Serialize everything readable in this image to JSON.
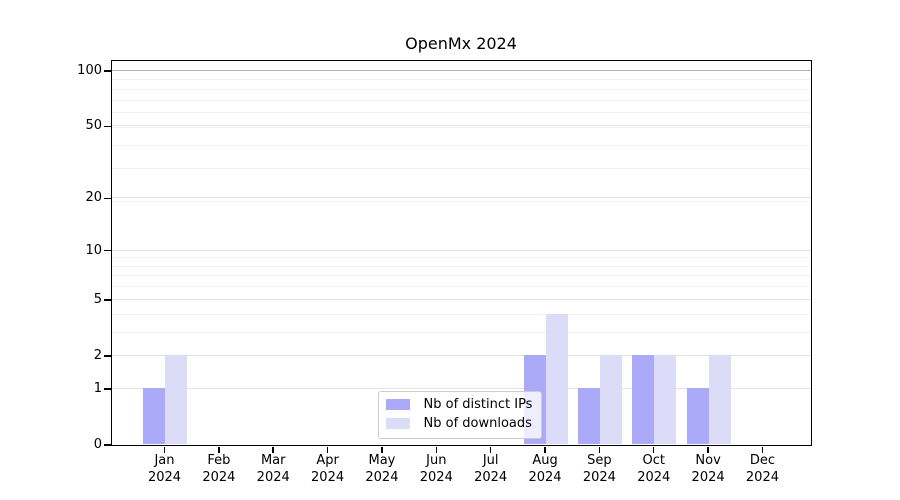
{
  "chart_data": {
    "type": "bar",
    "title": "OpenMx 2024",
    "categories": [
      {
        "month": "Jan",
        "year": "2024"
      },
      {
        "month": "Feb",
        "year": "2024"
      },
      {
        "month": "Mar",
        "year": "2024"
      },
      {
        "month": "Apr",
        "year": "2024"
      },
      {
        "month": "May",
        "year": "2024"
      },
      {
        "month": "Jun",
        "year": "2024"
      },
      {
        "month": "Jul",
        "year": "2024"
      },
      {
        "month": "Aug",
        "year": "2024"
      },
      {
        "month": "Sep",
        "year": "2024"
      },
      {
        "month": "Oct",
        "year": "2024"
      },
      {
        "month": "Nov",
        "year": "2024"
      },
      {
        "month": "Dec",
        "year": "2024"
      }
    ],
    "series": [
      {
        "name": "Nb of distinct IPs",
        "color": "#aaaaf8",
        "values": [
          1,
          0,
          0,
          0,
          0,
          0,
          0,
          2,
          1,
          2,
          1,
          0
        ]
      },
      {
        "name": "Nb of downloads",
        "color": "#dcdcf9",
        "values": [
          2,
          0,
          0,
          0,
          0,
          0,
          0,
          4,
          2,
          2,
          2,
          0
        ]
      }
    ],
    "yticks": [
      0,
      1,
      2,
      5,
      10,
      20,
      50,
      100
    ],
    "yscale": "log10(1+value)",
    "ylim": [
      0,
      113
    ],
    "xlabel": "",
    "ylabel": "",
    "grid": "horizontal major and log-minor gridlines",
    "legend_position": "inside lower-center"
  }
}
